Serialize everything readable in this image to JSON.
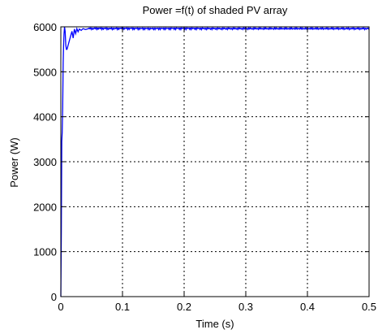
{
  "chart_data": {
    "type": "line",
    "title": "Power =f(t) of shaded PV array",
    "xlabel": "Time (s)",
    "ylabel": "Power (W)",
    "xlim": [
      0,
      0.5
    ],
    "ylim": [
      0,
      6000
    ],
    "xticks": [
      0,
      0.1,
      0.2,
      0.3,
      0.4,
      0.5
    ],
    "xtick_labels": [
      "0",
      "0.1",
      "0.2",
      "0.3",
      "0.4",
      "0.5"
    ],
    "yticks": [
      0,
      1000,
      2000,
      3000,
      4000,
      5000,
      6000
    ],
    "ytick_labels": [
      "0",
      "1000",
      "2000",
      "3000",
      "4000",
      "5000",
      "6000"
    ],
    "grid": true,
    "grid_style": "dotted",
    "series": [
      {
        "color": "#0000ff",
        "x": [
          0,
          0.0008,
          0.0015,
          0.0022,
          0.003,
          0.0038,
          0.0045,
          0.0052,
          0.006,
          0.007,
          0.008,
          0.009,
          0.01,
          0.012,
          0.014,
          0.016,
          0.018,
          0.02,
          0.022,
          0.024,
          0.026,
          0.028,
          0.03,
          0.033,
          0.036,
          0.04,
          0.045,
          0.05,
          0.06,
          0.08,
          0.1,
          0.15,
          0.2,
          0.25,
          0.3,
          0.35,
          0.4,
          0.45,
          0.5
        ],
        "y": [
          0,
          1450,
          3450,
          3650,
          4200,
          5200,
          5600,
          5850,
          6000,
          5900,
          5600,
          5500,
          5500,
          5600,
          5700,
          5800,
          5900,
          5750,
          5950,
          5850,
          5960,
          5890,
          5950,
          5920,
          5960,
          5940,
          5960,
          5960,
          5970,
          5960,
          5970,
          5960,
          5970,
          5960,
          5960,
          5960,
          5960,
          5960,
          5960
        ]
      }
    ]
  }
}
